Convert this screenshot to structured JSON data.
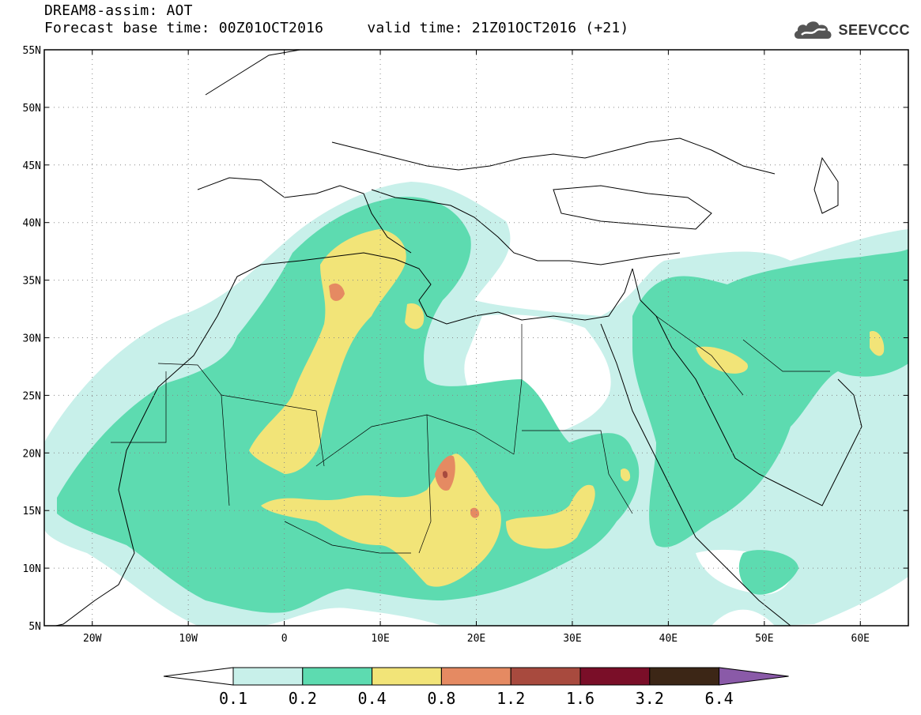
{
  "header": {
    "line1": "DREAM8-assim: AOT",
    "line2": "Forecast base time: 00Z01OCT2016     valid time: 21Z01OCT2016 (+21)",
    "logo_text": "SEEVCCC"
  },
  "map": {
    "lon_range": [
      -25,
      65
    ],
    "lat_range": [
      5,
      55
    ],
    "lat_ticks": [
      {
        "value": 55,
        "label": "55N"
      },
      {
        "value": 50,
        "label": "50N"
      },
      {
        "value": 45,
        "label": "45N"
      },
      {
        "value": 40,
        "label": "40N"
      },
      {
        "value": 35,
        "label": "35N"
      },
      {
        "value": 30,
        "label": "30N"
      },
      {
        "value": 25,
        "label": "25N"
      },
      {
        "value": 20,
        "label": "20N"
      },
      {
        "value": 15,
        "label": "15N"
      },
      {
        "value": 10,
        "label": "10N"
      },
      {
        "value": 5,
        "label": "5N"
      }
    ],
    "lon_ticks": [
      {
        "value": -20,
        "label": "20W"
      },
      {
        "value": -10,
        "label": "10W"
      },
      {
        "value": 0,
        "label": "0"
      },
      {
        "value": 10,
        "label": "10E"
      },
      {
        "value": 20,
        "label": "20E"
      },
      {
        "value": 30,
        "label": "30E"
      },
      {
        "value": 40,
        "label": "40E"
      },
      {
        "value": 50,
        "label": "50E"
      },
      {
        "value": 60,
        "label": "60E"
      }
    ],
    "colors": {
      "c1": "#c8f0ea",
      "c2": "#5ddbb0",
      "c3": "#f2e478",
      "c4": "#e58a62",
      "c5": "#a84a3e"
    }
  },
  "colorbar": {
    "colors": [
      "#ffffff",
      "#c8f0ea",
      "#5ddbb0",
      "#f2e478",
      "#e58a62",
      "#a84a3e",
      "#7a0e28",
      "#3c2616",
      "#8a5aa8"
    ],
    "labels": [
      "0.1",
      "0.2",
      "0.4",
      "0.8",
      "1.2",
      "1.6",
      "3.2",
      "6.4"
    ]
  }
}
